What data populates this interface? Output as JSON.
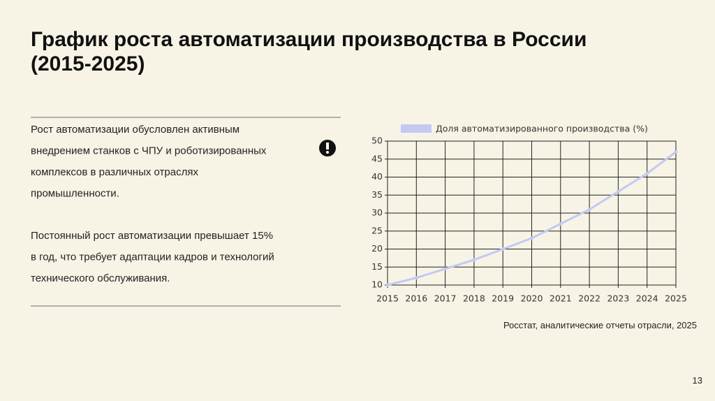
{
  "title": [
    "График роста автоматизации производства в России",
    "(2015-2025)"
  ],
  "paragraphs": [
    [
      "Рост автоматизации обусловлен активным",
      "внедрением станков с ЧПУ и роботизированных",
      "комплексов в различных отраслях",
      "промышленности."
    ],
    [
      "Постоянный рост автоматизации превышает 15%",
      "в год, что требует адаптации кадров и технологий",
      "технического обслуживания."
    ]
  ],
  "source": "Росстат, аналитические отчеты отрасли, 2025",
  "page_number": "13",
  "chart_data": {
    "type": "line",
    "x": [
      2015,
      2016,
      2017,
      2018,
      2019,
      2020,
      2021,
      2022,
      2023,
      2024,
      2025
    ],
    "series": [
      {
        "name": "Доля автоматизированного производства (%)",
        "color": "#c4c8f2",
        "values": [
          10,
          12,
          14.5,
          17,
          20,
          23,
          27,
          31,
          36,
          41,
          47
        ]
      }
    ],
    "xlim": [
      2015,
      2025
    ],
    "xticks": [
      2015,
      2016,
      2017,
      2018,
      2019,
      2020,
      2021,
      2022,
      2023,
      2024,
      2025
    ],
    "ylim": [
      10,
      50
    ],
    "yticks": [
      10,
      15,
      20,
      25,
      30,
      35,
      40,
      45,
      50
    ],
    "grid": true,
    "legend": "top"
  }
}
